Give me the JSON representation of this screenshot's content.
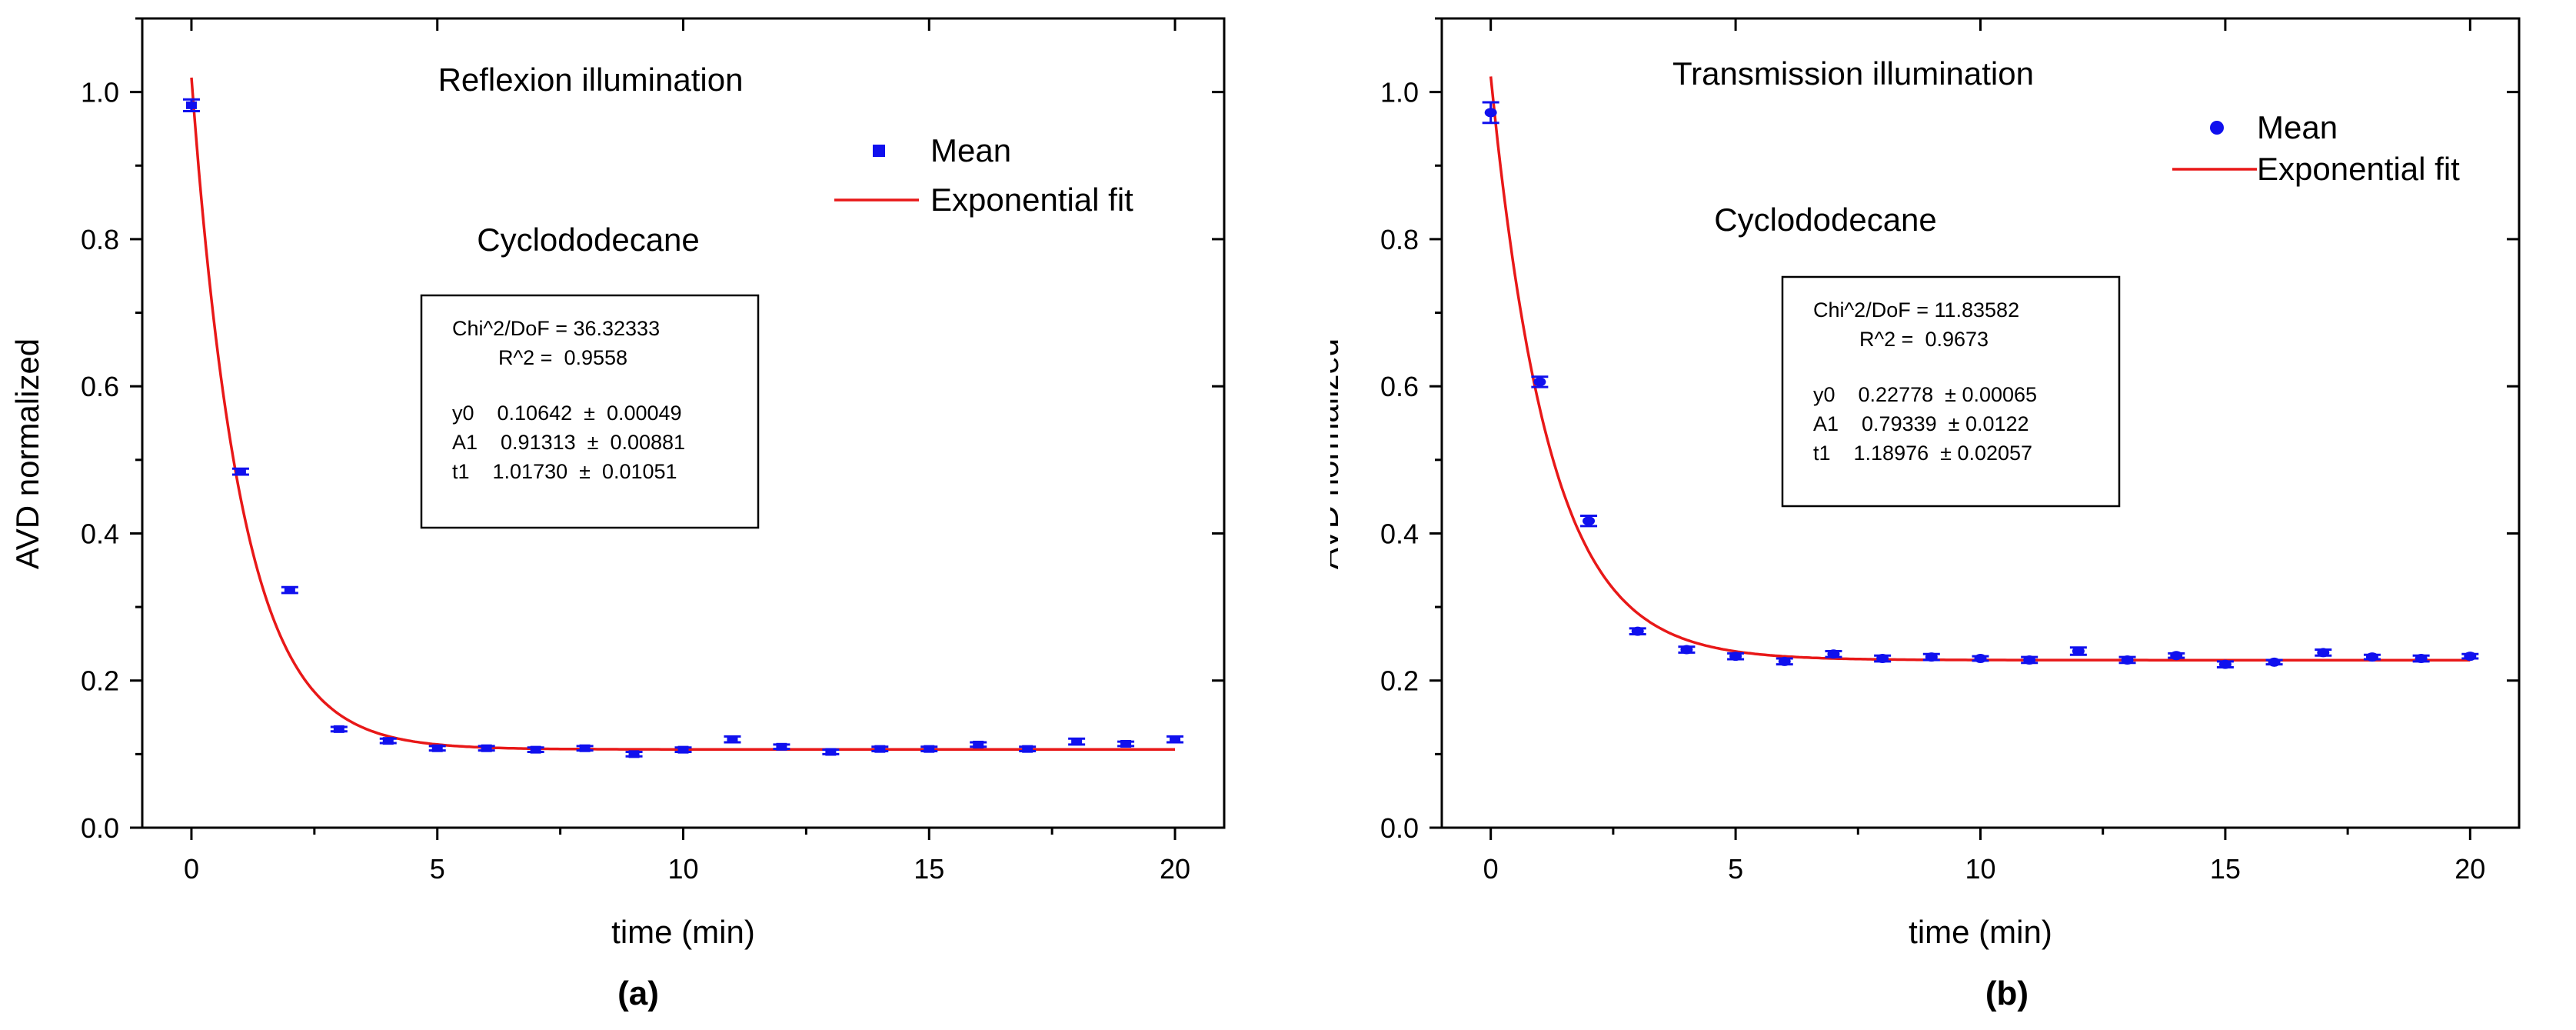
{
  "chart_data": [
    {
      "type": "scatter",
      "panel_label": "(a)",
      "title": "Reflexion illumination",
      "subtitle": "Cyclododecane",
      "xlabel": "time (min)",
      "ylabel": "AVD normalized",
      "xlim": [
        -1,
        21
      ],
      "ylim": [
        0.0,
        1.1
      ],
      "xticks": [
        0,
        5,
        10,
        15,
        20
      ],
      "xtick_labels": [
        "0",
        "5",
        "10",
        "15",
        "20"
      ],
      "yticks": [
        0.0,
        0.2,
        0.4,
        0.6,
        0.8,
        1.0
      ],
      "ytick_labels": [
        "0.0",
        "0.2",
        "0.4",
        "0.6",
        "0.8",
        "1.0"
      ],
      "legend": {
        "placement": "top-right",
        "mean_label": "Mean",
        "fit_label": "Exponential fit",
        "marker": "square"
      },
      "series": [
        {
          "name": "Mean",
          "x": [
            0,
            1,
            2,
            3,
            4,
            5,
            6,
            7,
            8,
            9,
            10,
            11,
            12,
            13,
            14,
            15,
            16,
            17,
            18,
            19,
            20
          ],
          "y": [
            0.982,
            0.484,
            0.323,
            0.134,
            0.118,
            0.108,
            0.108,
            0.106,
            0.108,
            0.1,
            0.106,
            0.12,
            0.11,
            0.103,
            0.107,
            0.107,
            0.113,
            0.107,
            0.117,
            0.114,
            0.12
          ],
          "err": [
            0.008,
            0.004,
            0.004,
            0.003,
            0.003,
            0.003,
            0.003,
            0.003,
            0.003,
            0.003,
            0.003,
            0.004,
            0.003,
            0.003,
            0.003,
            0.003,
            0.003,
            0.003,
            0.004,
            0.003,
            0.004
          ]
        }
      ],
      "fit": {
        "name": "Exponential fit",
        "y0": 0.10642,
        "A1": 0.91313,
        "t1": 1.0173
      },
      "fit_box": [
        "Chi^2/DoF = 36.32333",
        "R^2 =  0.9558",
        "y0    0.10642  ±  0.00049",
        "A1    0.91313  ±  0.00881",
        "t1    1.01730  ±  0.01051"
      ],
      "colors": {
        "points": "#1010ee",
        "fit": "#e81818"
      }
    },
    {
      "type": "scatter",
      "panel_label": "(b)",
      "title": "Transmission illumination",
      "subtitle": "Cyclododecane",
      "xlabel": "time (min)",
      "ylabel": "AVD normalized",
      "xlim": [
        -1,
        21
      ],
      "ylim": [
        0.0,
        1.1
      ],
      "xticks": [
        0,
        5,
        10,
        15,
        20
      ],
      "xtick_labels": [
        "0",
        "5",
        "10",
        "15",
        "20"
      ],
      "yticks": [
        0.0,
        0.2,
        0.4,
        0.6,
        0.8,
        1.0
      ],
      "ytick_labels": [
        "0.0",
        "0.2",
        "0.4",
        "0.6",
        "0.8",
        "1.0"
      ],
      "legend": {
        "placement": "top-right",
        "mean_label": "Mean",
        "fit_label": "Exponential fit",
        "marker": "circle"
      },
      "series": [
        {
          "name": "Mean",
          "x": [
            0,
            1,
            2,
            3,
            4,
            5,
            6,
            7,
            8,
            9,
            10,
            11,
            12,
            13,
            14,
            15,
            16,
            17,
            18,
            19,
            20
          ],
          "y": [
            0.972,
            0.606,
            0.417,
            0.267,
            0.242,
            0.233,
            0.226,
            0.236,
            0.23,
            0.232,
            0.23,
            0.228,
            0.24,
            0.228,
            0.234,
            0.222,
            0.225,
            0.238,
            0.232,
            0.23,
            0.233
          ],
          "err": [
            0.014,
            0.007,
            0.007,
            0.004,
            0.004,
            0.004,
            0.004,
            0.004,
            0.004,
            0.004,
            0.003,
            0.004,
            0.005,
            0.004,
            0.003,
            0.004,
            0.003,
            0.004,
            0.003,
            0.004,
            0.003
          ]
        }
      ],
      "fit": {
        "name": "Exponential fit",
        "y0": 0.22778,
        "A1": 0.79339,
        "t1": 1.18976
      },
      "fit_box": [
        "Chi^2/DoF = 11.83582",
        "R^2 =  0.9673",
        "y0    0.22778  ± 0.00065",
        "A1    0.79339  ± 0.0122",
        "t1    1.18976  ± 0.02057"
      ],
      "colors": {
        "points": "#1010ee",
        "fit": "#e81818"
      }
    }
  ]
}
